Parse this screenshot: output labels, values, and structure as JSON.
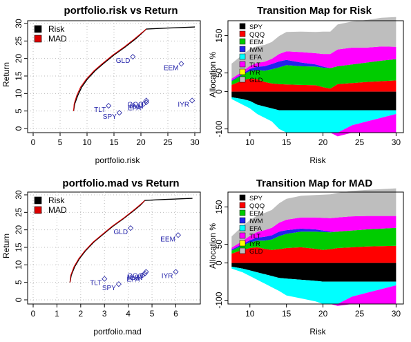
{
  "chart_data": [
    {
      "type": "line",
      "title": "portfolio.risk vs Return",
      "xlabel": "portfolio.risk",
      "ylabel": "Return",
      "xlim": [
        0,
        30
      ],
      "ylim": [
        0,
        30
      ],
      "x_ticks": [
        "0",
        "5",
        "10",
        "15",
        "20",
        "25",
        "30"
      ],
      "y_ticks": [
        "0",
        "5",
        "10",
        "15",
        "20",
        "25",
        "30"
      ],
      "grid": true,
      "legend_position": "top-left",
      "series": [
        {
          "name": "Risk",
          "color": "#000000",
          "x": [
            7.5,
            7.7,
            8.3,
            9.0,
            10.0,
            11.5,
            13.0,
            15.0,
            17.0,
            19.0,
            20.0,
            21.0,
            25.0,
            30.0
          ],
          "y": [
            5,
            7,
            9.5,
            11.8,
            14,
            16.5,
            18.5,
            21,
            23.2,
            25.6,
            27,
            28.4,
            28.7,
            29
          ]
        },
        {
          "name": "MAD",
          "color": "#dd0000",
          "x": [
            7.5,
            7.6,
            8.1,
            8.8,
            9.8,
            11.3,
            12.8,
            14.8,
            16.8,
            18.8,
            19.9,
            21.0
          ],
          "y": [
            5,
            7,
            9.5,
            11.8,
            14,
            16.5,
            18.5,
            21,
            23.2,
            25.6,
            27,
            28.4
          ]
        }
      ],
      "points": [
        {
          "label": "SPY",
          "x": 16.0,
          "y": 4.5
        },
        {
          "label": "QQQ",
          "x": 21.0,
          "y": 8.0
        },
        {
          "label": "EEM",
          "x": 27.5,
          "y": 18.5
        },
        {
          "label": "IWM",
          "x": 21.0,
          "y": 7.5
        },
        {
          "label": "EFA",
          "x": 20.5,
          "y": 7.0
        },
        {
          "label": "TLT",
          "x": 14.0,
          "y": 6.5
        },
        {
          "label": "IYR",
          "x": 29.5,
          "y": 8.0
        },
        {
          "label": "GLD",
          "x": 18.5,
          "y": 20.5
        }
      ]
    },
    {
      "type": "area",
      "title": "Transition Map for Risk",
      "xlabel": "Risk",
      "ylabel": "Allocation %",
      "xlim": [
        7,
        31
      ],
      "ylim": [
        -110,
        190
      ],
      "x_ticks": [
        "10",
        "15",
        "20",
        "25",
        "30"
      ],
      "y_ticks": [
        "-100",
        "0",
        "50",
        "150"
      ],
      "legend_position": "top-left",
      "series": [
        {
          "name": "SPY",
          "color": "#000000"
        },
        {
          "name": "QQQ",
          "color": "#ff0000"
        },
        {
          "name": "EEM",
          "color": "#00cc00"
        },
        {
          "name": "IWM",
          "color": "#2222ee"
        },
        {
          "name": "EFA",
          "color": "#00ffff"
        },
        {
          "name": "TLT",
          "color": "#ff00ff"
        },
        {
          "name": "IYR",
          "color": "#ffff00"
        },
        {
          "name": "GLD",
          "color": "#bebebe"
        }
      ],
      "x": [
        7.5,
        9,
        10,
        11,
        12,
        13,
        14,
        15,
        17,
        19,
        20,
        21,
        22,
        24,
        26,
        28,
        30
      ],
      "pos_bands": [
        {
          "name": "QQQ",
          "color": "#ff0000",
          "values": [
            18,
            30,
            35,
            33,
            26,
            22,
            20,
            19,
            18,
            17,
            12,
            8,
            20,
            23,
            26,
            28,
            30
          ]
        },
        {
          "name": "EEM",
          "color": "#00cc00",
          "values": [
            10,
            15,
            20,
            25,
            30,
            38,
            45,
            52,
            50,
            50,
            52,
            55,
            48,
            50,
            52,
            55,
            57
          ]
        },
        {
          "name": "IWM",
          "color": "#2222ee",
          "values": [
            2,
            3,
            6,
            9,
            12,
            14,
            16,
            14,
            10,
            6,
            3,
            0,
            0,
            0,
            0,
            0,
            0
          ]
        },
        {
          "name": "TLT",
          "color": "#ff00ff",
          "values": [
            5,
            6,
            8,
            10,
            12,
            14,
            20,
            23,
            28,
            30,
            34,
            38,
            45,
            45,
            40,
            38,
            33
          ]
        },
        {
          "name": "GLD",
          "color": "#bebebe",
          "values": [
            40,
            45,
            45,
            45,
            45,
            45,
            48,
            52,
            55,
            57,
            60,
            60,
            67,
            70,
            74,
            77,
            80
          ]
        }
      ],
      "neg_bands": [
        {
          "name": "SPY",
          "color": "#000000",
          "values": [
            -15,
            -20,
            -25,
            -35,
            -40,
            -45,
            -50,
            -50,
            -50,
            -50,
            -50,
            -50,
            -50,
            -50,
            -50,
            -50,
            -50
          ]
        },
        {
          "name": "EFA",
          "color": "#00ffff",
          "values": [
            -5,
            -15,
            -20,
            -25,
            -30,
            -35,
            -50,
            -60,
            -60,
            -60,
            -60,
            -60,
            -60,
            -40,
            -30,
            -20,
            -10
          ]
        },
        {
          "name": "TLT",
          "color": "#ff00ff",
          "values": [
            0,
            0,
            0,
            0,
            0,
            0,
            0,
            0,
            0,
            0,
            0,
            0,
            -10,
            -20,
            -30,
            -40,
            -50
          ]
        }
      ]
    },
    {
      "type": "line",
      "title": "portfolio.mad vs Return",
      "xlabel": "portfolio.mad",
      "ylabel": "Return",
      "xlim": [
        0,
        6.8
      ],
      "ylim": [
        0,
        30
      ],
      "x_ticks": [
        "0",
        "1",
        "2",
        "3",
        "4",
        "5",
        "6"
      ],
      "y_ticks": [
        "0",
        "5",
        "10",
        "15",
        "20",
        "25",
        "30"
      ],
      "grid": true,
      "legend_position": "top-left",
      "series": [
        {
          "name": "Risk",
          "color": "#000000",
          "x": [
            1.55,
            1.6,
            1.75,
            1.95,
            2.2,
            2.55,
            2.9,
            3.35,
            3.8,
            4.25,
            4.5,
            4.7,
            5.6,
            6.7
          ],
          "y": [
            5,
            7,
            9.5,
            11.8,
            14,
            16.5,
            18.5,
            21,
            23.2,
            25.6,
            27,
            28.4,
            28.7,
            29
          ]
        },
        {
          "name": "MAD",
          "color": "#dd0000",
          "x": [
            1.55,
            1.58,
            1.72,
            1.92,
            2.17,
            2.52,
            2.87,
            3.32,
            3.77,
            4.22,
            4.47,
            4.7
          ],
          "y": [
            5,
            7,
            9.5,
            11.8,
            14,
            16.5,
            18.5,
            21,
            23.2,
            25.6,
            27,
            28.4
          ]
        }
      ],
      "points": [
        {
          "label": "SPY",
          "x": 3.6,
          "y": 4.5
        },
        {
          "label": "QQQ",
          "x": 4.75,
          "y": 8.0
        },
        {
          "label": "EEM",
          "x": 6.1,
          "y": 18.5
        },
        {
          "label": "IWM",
          "x": 4.7,
          "y": 7.5
        },
        {
          "label": "EFA",
          "x": 4.6,
          "y": 7.0
        },
        {
          "label": "TLT",
          "x": 3.0,
          "y": 6.0
        },
        {
          "label": "IYR",
          "x": 6.0,
          "y": 8.0
        },
        {
          "label": "GLD",
          "x": 4.1,
          "y": 20.5
        }
      ]
    },
    {
      "type": "area",
      "title": "Transition Map for MAD",
      "xlabel": "Risk",
      "ylabel": "Allocation %",
      "xlim": [
        7,
        31
      ],
      "ylim": [
        -110,
        190
      ],
      "x_ticks": [
        "10",
        "15",
        "20",
        "25",
        "30"
      ],
      "y_ticks": [
        "-100",
        "0",
        "50",
        "150"
      ],
      "legend_position": "top-left",
      "series": [
        {
          "name": "SPY",
          "color": "#000000"
        },
        {
          "name": "QQQ",
          "color": "#ff0000"
        },
        {
          "name": "EEM",
          "color": "#00cc00"
        },
        {
          "name": "IWM",
          "color": "#2222ee"
        },
        {
          "name": "EFA",
          "color": "#00ffff"
        },
        {
          "name": "TLT",
          "color": "#ff00ff"
        },
        {
          "name": "IYR",
          "color": "#ffff00"
        },
        {
          "name": "GLD",
          "color": "#bebebe"
        }
      ],
      "x": [
        7.5,
        9,
        10,
        11,
        12,
        13,
        14,
        15,
        17,
        19,
        20,
        21,
        22,
        24,
        26,
        28,
        30
      ],
      "pos_bands": [
        {
          "name": "QQQ",
          "color": "#ff0000",
          "values": [
            25,
            35,
            40,
            42,
            38,
            35,
            37,
            40,
            42,
            38,
            35,
            37,
            40,
            42,
            44,
            45,
            46
          ]
        },
        {
          "name": "EEM",
          "color": "#00cc00",
          "values": [
            8,
            12,
            15,
            18,
            22,
            28,
            35,
            38,
            42,
            46,
            48,
            45,
            44,
            45,
            46,
            47,
            48
          ]
        },
        {
          "name": "IWM",
          "color": "#2222ee",
          "values": [
            3,
            4,
            6,
            8,
            10,
            11,
            12,
            10,
            8,
            6,
            4,
            2,
            0,
            0,
            0,
            0,
            0
          ]
        },
        {
          "name": "TLT",
          "color": "#ff00ff",
          "values": [
            5,
            8,
            12,
            15,
            18,
            20,
            24,
            28,
            30,
            32,
            34,
            36,
            38,
            38,
            36,
            34,
            32
          ]
        },
        {
          "name": "GLD",
          "color": "#bebebe",
          "values": [
            30,
            40,
            42,
            44,
            46,
            48,
            52,
            56,
            58,
            60,
            62,
            64,
            66,
            68,
            70,
            72,
            74
          ]
        }
      ],
      "neg_bands": [
        {
          "name": "SPY",
          "color": "#000000",
          "values": [
            -10,
            -15,
            -20,
            -25,
            -30,
            -35,
            -40,
            -42,
            -45,
            -48,
            -50,
            -50,
            -50,
            -50,
            -50,
            -50,
            -50
          ]
        },
        {
          "name": "EFA",
          "color": "#00ffff",
          "values": [
            -5,
            -10,
            -15,
            -20,
            -25,
            -30,
            -35,
            -45,
            -50,
            -55,
            -60,
            -60,
            -60,
            -40,
            -30,
            -20,
            -10
          ]
        },
        {
          "name": "TLT",
          "color": "#ff00ff",
          "values": [
            0,
            0,
            0,
            0,
            0,
            0,
            0,
            0,
            0,
            0,
            0,
            0,
            -5,
            -20,
            -30,
            -40,
            -50
          ]
        }
      ]
    }
  ]
}
